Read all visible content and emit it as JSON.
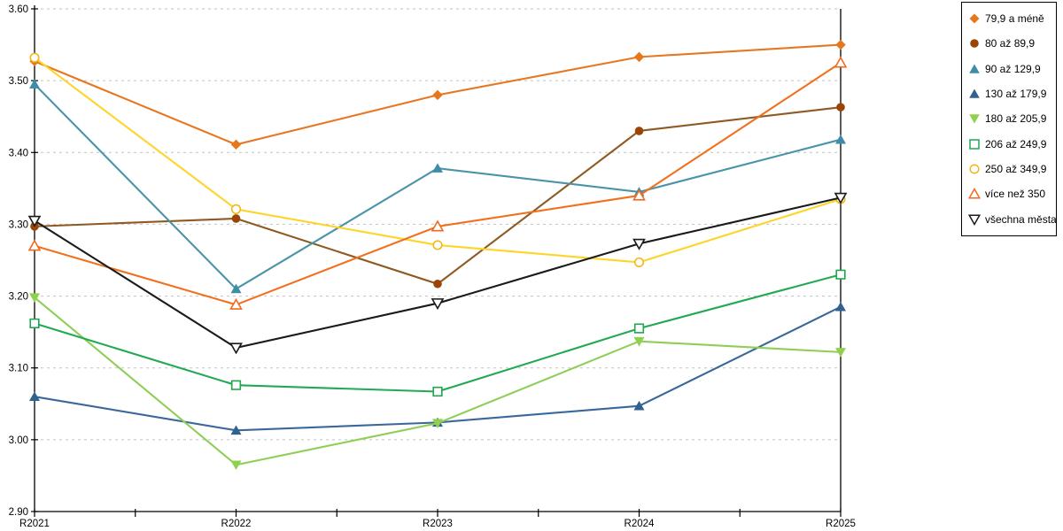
{
  "chart_data": {
    "type": "line",
    "title": "",
    "xlabel": "",
    "ylabel": "",
    "categories": [
      "R2021",
      "R2022",
      "R2023",
      "R2024",
      "R2025"
    ],
    "ylim": [
      2.9,
      3.6
    ],
    "ytick_step": 0.1,
    "ytick_labels": [
      "2.90",
      "3.00",
      "3.10",
      "3.20",
      "3.30",
      "3.40",
      "3.50",
      "3.60"
    ],
    "grid": "dashed-horizontal",
    "legend_position": "right",
    "series": [
      {
        "name": "79,9 a méně",
        "marker": "diamond",
        "fill": "solid",
        "line_color": "#E87722",
        "marker_color": "#E8761B",
        "values": [
          3.527,
          3.411,
          3.48,
          3.533,
          3.55
        ]
      },
      {
        "name": "80 až 89,9",
        "marker": "circle",
        "fill": "solid",
        "line_color": "#8E5A22",
        "marker_color": "#9A4506",
        "values": [
          3.297,
          3.308,
          3.217,
          3.43,
          3.463
        ]
      },
      {
        "name": "90 až 129,9",
        "marker": "triangle-up",
        "fill": "solid",
        "line_color": "#4A93A8",
        "marker_color": "#3E8CA6",
        "values": [
          3.495,
          3.21,
          3.378,
          3.345,
          3.418
        ]
      },
      {
        "name": "130 až 179,9",
        "marker": "triangle-up",
        "fill": "solid",
        "line_color": "#3A689A",
        "marker_color": "#31618F",
        "values": [
          3.06,
          3.013,
          3.024,
          3.047,
          3.185
        ]
      },
      {
        "name": "180 až 205,9",
        "marker": "triangle-down",
        "fill": "solid",
        "line_color": "#90CE58",
        "marker_color": "#8FD04F",
        "values": [
          3.198,
          2.965,
          3.023,
          3.137,
          3.122
        ]
      },
      {
        "name": "206 až 249,9",
        "marker": "square",
        "fill": "open",
        "line_color": "#22A953",
        "marker_color": "#1FA750",
        "values": [
          3.162,
          3.076,
          3.067,
          3.155,
          3.23
        ]
      },
      {
        "name": "250 až 349,9",
        "marker": "circle",
        "fill": "open",
        "line_color": "#FFD42A",
        "marker_color": "#EFB919",
        "values": [
          3.532,
          3.321,
          3.271,
          3.247,
          3.335
        ]
      },
      {
        "name": "více než 350",
        "marker": "triangle-up",
        "fill": "open",
        "line_color": "#F2701D",
        "marker_color": "#F06A21",
        "values": [
          3.27,
          3.188,
          3.297,
          3.34,
          3.525
        ]
      },
      {
        "name": "všechna města",
        "marker": "triangle-down",
        "fill": "open",
        "line_color": "#1A1A1A",
        "marker_color": "#1A1A1A",
        "values": [
          3.305,
          3.128,
          3.19,
          3.273,
          3.337
        ]
      }
    ]
  },
  "style": {
    "grid_color": "#c2c2c2",
    "axis_color": "#000000",
    "text_color": "#000000"
  }
}
